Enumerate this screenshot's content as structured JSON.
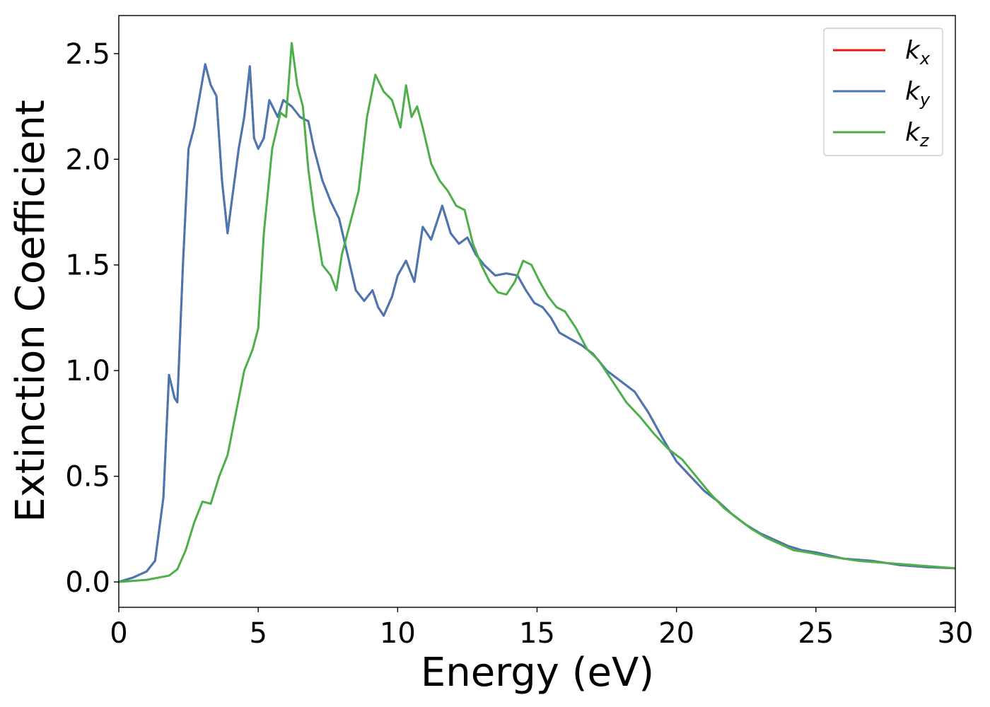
{
  "chart_data": {
    "type": "line",
    "title": "",
    "xlabel": "Energy (eV)",
    "ylabel": "Extinction Coefficient",
    "xlim": [
      0,
      30
    ],
    "ylim": [
      -0.12,
      2.68
    ],
    "xticks": [
      0,
      5,
      10,
      15,
      20,
      25,
      30
    ],
    "xtick_labels": [
      "0",
      "5",
      "10",
      "15",
      "20",
      "25",
      "30"
    ],
    "yticks": [
      0.0,
      0.5,
      1.0,
      1.5,
      2.0,
      2.5
    ],
    "ytick_labels": [
      "0.0",
      "0.5",
      "1.0",
      "1.5",
      "2.0",
      "2.5"
    ],
    "grid": false,
    "legend_position": "top-right",
    "series": [
      {
        "name": "k",
        "subscript": "x",
        "color": "#e41a1c",
        "x": [
          0,
          0.5,
          1.0,
          1.3,
          1.6,
          1.8,
          2.0,
          2.1,
          2.3,
          2.5,
          2.7,
          2.9,
          3.1,
          3.3,
          3.5,
          3.7,
          3.9,
          4.05,
          4.3,
          4.5,
          4.7,
          4.85,
          5.0,
          5.2,
          5.4,
          5.7,
          5.9,
          6.2,
          6.5,
          6.8,
          7.0,
          7.3,
          7.6,
          7.9,
          8.2,
          8.5,
          8.8,
          9.1,
          9.3,
          9.5,
          9.8,
          10.0,
          10.3,
          10.6,
          10.9,
          11.2,
          11.6,
          11.9,
          12.2,
          12.5,
          12.8,
          13.1,
          13.5,
          13.9,
          14.3,
          14.6,
          14.9,
          15.2,
          15.5,
          15.8,
          16.2,
          16.6,
          17.0,
          17.5,
          18.0,
          18.5,
          19.0,
          19.5,
          20.0,
          20.5,
          21.0,
          21.5,
          22.0,
          22.5,
          23.0,
          23.5,
          24.0,
          24.5,
          25.0,
          26.0,
          27.0,
          28.0,
          29.0,
          30.0
        ],
        "y": [
          0.0,
          0.02,
          0.05,
          0.1,
          0.4,
          0.98,
          0.87,
          0.85,
          1.5,
          2.05,
          2.15,
          2.3,
          2.45,
          2.35,
          2.3,
          1.9,
          1.65,
          1.8,
          2.05,
          2.2,
          2.44,
          2.1,
          2.05,
          2.1,
          2.28,
          2.2,
          2.28,
          2.25,
          2.2,
          2.18,
          2.05,
          1.9,
          1.8,
          1.72,
          1.55,
          1.38,
          1.33,
          1.38,
          1.3,
          1.26,
          1.35,
          1.45,
          1.52,
          1.42,
          1.68,
          1.62,
          1.78,
          1.65,
          1.6,
          1.63,
          1.55,
          1.5,
          1.45,
          1.46,
          1.45,
          1.38,
          1.32,
          1.3,
          1.25,
          1.18,
          1.15,
          1.12,
          1.08,
          1.0,
          0.95,
          0.9,
          0.8,
          0.68,
          0.57,
          0.5,
          0.43,
          0.38,
          0.32,
          0.27,
          0.23,
          0.2,
          0.17,
          0.15,
          0.14,
          0.11,
          0.1,
          0.08,
          0.07,
          0.065
        ]
      },
      {
        "name": "k",
        "subscript": "y",
        "color": "#4878b4",
        "x": [
          0,
          0.5,
          1.0,
          1.3,
          1.6,
          1.8,
          2.0,
          2.1,
          2.3,
          2.5,
          2.7,
          2.9,
          3.1,
          3.3,
          3.5,
          3.7,
          3.9,
          4.05,
          4.3,
          4.5,
          4.7,
          4.85,
          5.0,
          5.2,
          5.4,
          5.7,
          5.9,
          6.2,
          6.5,
          6.8,
          7.0,
          7.3,
          7.6,
          7.9,
          8.2,
          8.5,
          8.8,
          9.1,
          9.3,
          9.5,
          9.8,
          10.0,
          10.3,
          10.6,
          10.9,
          11.2,
          11.6,
          11.9,
          12.2,
          12.5,
          12.8,
          13.1,
          13.5,
          13.9,
          14.3,
          14.6,
          14.9,
          15.2,
          15.5,
          15.8,
          16.2,
          16.6,
          17.0,
          17.5,
          18.0,
          18.5,
          19.0,
          19.5,
          20.0,
          20.5,
          21.0,
          21.5,
          22.0,
          22.5,
          23.0,
          23.5,
          24.0,
          24.5,
          25.0,
          26.0,
          27.0,
          28.0,
          29.0,
          30.0
        ],
        "y": [
          0.0,
          0.02,
          0.05,
          0.1,
          0.4,
          0.98,
          0.87,
          0.85,
          1.5,
          2.05,
          2.15,
          2.3,
          2.45,
          2.35,
          2.3,
          1.9,
          1.65,
          1.8,
          2.05,
          2.2,
          2.44,
          2.1,
          2.05,
          2.1,
          2.28,
          2.2,
          2.28,
          2.25,
          2.2,
          2.18,
          2.05,
          1.9,
          1.8,
          1.72,
          1.55,
          1.38,
          1.33,
          1.38,
          1.3,
          1.26,
          1.35,
          1.45,
          1.52,
          1.42,
          1.68,
          1.62,
          1.78,
          1.65,
          1.6,
          1.63,
          1.55,
          1.5,
          1.45,
          1.46,
          1.45,
          1.38,
          1.32,
          1.3,
          1.25,
          1.18,
          1.15,
          1.12,
          1.08,
          1.0,
          0.95,
          0.9,
          0.8,
          0.68,
          0.57,
          0.5,
          0.43,
          0.38,
          0.32,
          0.27,
          0.23,
          0.2,
          0.17,
          0.15,
          0.14,
          0.11,
          0.1,
          0.08,
          0.07,
          0.065
        ]
      },
      {
        "name": "k",
        "subscript": "z",
        "color": "#4daf4a",
        "x": [
          0,
          1.0,
          1.8,
          2.1,
          2.4,
          2.7,
          3.0,
          3.3,
          3.6,
          3.9,
          4.2,
          4.5,
          4.8,
          5.0,
          5.2,
          5.5,
          5.8,
          6.0,
          6.2,
          6.4,
          6.6,
          6.8,
          7.0,
          7.3,
          7.6,
          7.8,
          8.0,
          8.3,
          8.6,
          8.9,
          9.2,
          9.5,
          9.8,
          10.1,
          10.3,
          10.5,
          10.7,
          10.9,
          11.2,
          11.5,
          11.8,
          12.1,
          12.4,
          12.7,
          13.0,
          13.3,
          13.6,
          13.9,
          14.2,
          14.5,
          14.8,
          15.1,
          15.4,
          15.7,
          16.0,
          16.4,
          16.8,
          17.2,
          17.7,
          18.2,
          18.7,
          19.2,
          19.7,
          20.2,
          20.7,
          21.2,
          21.7,
          22.2,
          22.7,
          23.2,
          23.7,
          24.2,
          24.7,
          25.5,
          26.5,
          27.5,
          28.5,
          29.5,
          30.0
        ],
        "y": [
          0.0,
          0.01,
          0.03,
          0.06,
          0.15,
          0.28,
          0.38,
          0.37,
          0.5,
          0.6,
          0.8,
          1.0,
          1.1,
          1.2,
          1.65,
          2.05,
          2.22,
          2.2,
          2.55,
          2.35,
          2.25,
          1.95,
          1.75,
          1.5,
          1.45,
          1.38,
          1.55,
          1.7,
          1.85,
          2.2,
          2.4,
          2.32,
          2.28,
          2.15,
          2.35,
          2.2,
          2.25,
          2.15,
          1.98,
          1.9,
          1.85,
          1.78,
          1.76,
          1.6,
          1.5,
          1.42,
          1.37,
          1.36,
          1.42,
          1.52,
          1.5,
          1.42,
          1.35,
          1.3,
          1.28,
          1.2,
          1.1,
          1.05,
          0.95,
          0.85,
          0.78,
          0.7,
          0.63,
          0.58,
          0.5,
          0.42,
          0.35,
          0.3,
          0.25,
          0.21,
          0.18,
          0.15,
          0.14,
          0.12,
          0.1,
          0.09,
          0.08,
          0.07,
          0.065
        ]
      }
    ]
  }
}
